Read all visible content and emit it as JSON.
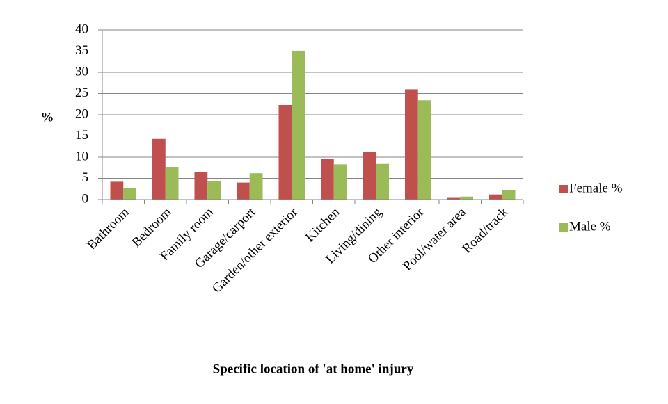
{
  "chart_data": {
    "type": "bar",
    "x_label": "Specific location of 'at home' injury",
    "y_label": "%",
    "categories": [
      "Bathroom",
      "Bedroom",
      "Family room",
      "Garage/carport",
      "Garden/other exterior",
      "Kitchen",
      "Living/dining",
      "Other interior",
      "Pool/water area",
      "Road/track"
    ],
    "series": [
      {
        "name": "Female %",
        "color": "#c0504d",
        "values": [
          4.2,
          14.3,
          6.4,
          4.0,
          22.3,
          9.6,
          11.3,
          26.0,
          0.4,
          1.2
        ]
      },
      {
        "name": "Male %",
        "color": "#9bbb59",
        "values": [
          2.7,
          7.7,
          4.4,
          6.2,
          35.1,
          8.3,
          8.4,
          23.4,
          0.7,
          2.3
        ]
      }
    ],
    "ylim": [
      0,
      40
    ],
    "yticks": [
      0,
      5,
      10,
      15,
      20,
      25,
      30,
      35,
      40
    ],
    "grid": true,
    "legend": "right"
  }
}
